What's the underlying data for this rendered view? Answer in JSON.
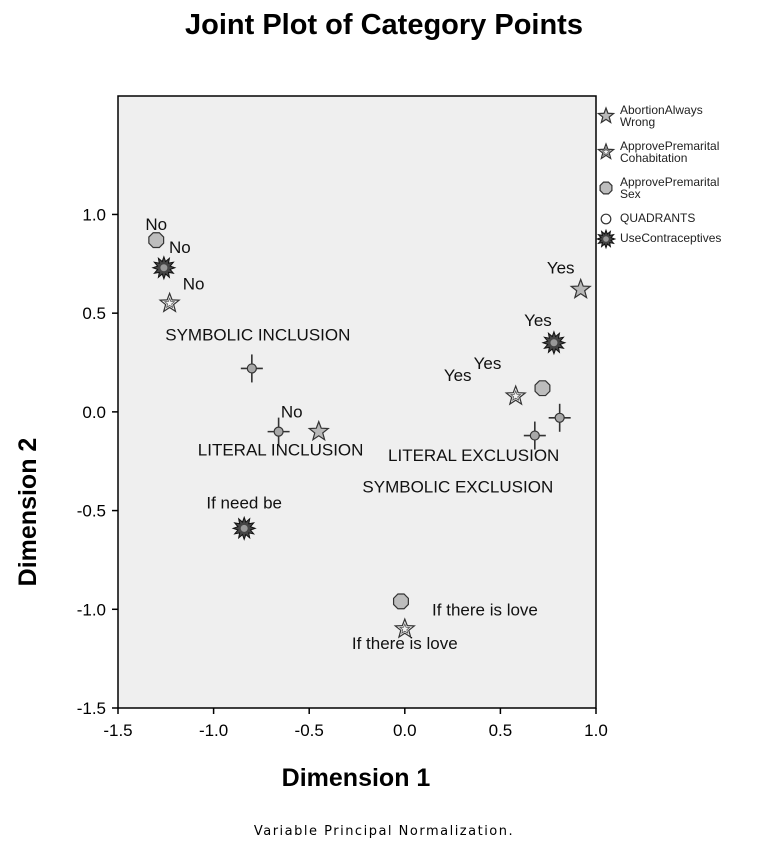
{
  "chart_data": {
    "type": "scatter",
    "title": "Joint Plot of Category Points",
    "xlabel": "Dimension 1",
    "ylabel": "Dimension 2",
    "xlim": [
      -1.5,
      1.0
    ],
    "ylim": [
      -1.5,
      1.6
    ],
    "xticks": [
      -1.5,
      -1.0,
      -0.5,
      0.0,
      0.5,
      1.0
    ],
    "xtick_labels": [
      "-1.5",
      "-1.0",
      "-0.5",
      "0.0",
      "0.5",
      "1.0"
    ],
    "yticks": [
      -1.5,
      -1.0,
      -0.5,
      0.0,
      0.5,
      1.0
    ],
    "ytick_labels": [
      "-1.5",
      "-1.0",
      "-0.5",
      "0.0",
      "0.5",
      "1.0"
    ],
    "footnote": "Variable Principal Normalization.",
    "legend_position": "right",
    "background": "#efefef",
    "series": [
      {
        "name": "AbortionAlwaysWrong",
        "legend_lines": [
          "AbortionAlways",
          "Wrong"
        ],
        "marker": "star-filled",
        "points": [
          {
            "x": -0.45,
            "y": -0.1,
            "label": "No"
          },
          {
            "x": 0.92,
            "y": 0.62,
            "label": "Yes"
          }
        ]
      },
      {
        "name": "ApprovePremaritalCohabitation",
        "legend_lines": [
          "ApprovePremarital",
          "Cohabitation"
        ],
        "marker": "star-open",
        "points": [
          {
            "x": -1.23,
            "y": 0.55,
            "label": "No"
          },
          {
            "x": 0.58,
            "y": 0.08,
            "label": "Yes"
          },
          {
            "x": 0.0,
            "y": -1.1,
            "label": "If there is love"
          }
        ]
      },
      {
        "name": "ApprovePremaritalSex",
        "legend_lines": [
          "ApprovePremarital",
          "Sex"
        ],
        "marker": "octagon",
        "points": [
          {
            "x": -1.3,
            "y": 0.87,
            "label": "No"
          },
          {
            "x": 0.72,
            "y": 0.12,
            "label": "Yes"
          },
          {
            "x": -0.02,
            "y": -0.96,
            "label": "If there is love"
          }
        ]
      },
      {
        "name": "QUADRANTS",
        "legend_lines": [
          "QUADRANTS"
        ],
        "marker": "cross",
        "points": [
          {
            "x": -0.8,
            "y": 0.22,
            "label": "SYMBOLIC INCLUSION"
          },
          {
            "x": -0.66,
            "y": -0.1,
            "label": "LITERAL INCLUSION"
          },
          {
            "x": 0.81,
            "y": -0.03,
            "label": "LITERAL EXCLUSION"
          },
          {
            "x": 0.68,
            "y": -0.12,
            "label": "SYMBOLIC EXCLUSION"
          }
        ]
      },
      {
        "name": "UseContraceptives",
        "legend_lines": [
          "UseContraceptives"
        ],
        "marker": "burst",
        "points": [
          {
            "x": -1.26,
            "y": 0.73,
            "label": "No"
          },
          {
            "x": 0.78,
            "y": 0.35,
            "label": "Yes"
          },
          {
            "x": -0.84,
            "y": -0.59,
            "label": "If need be"
          }
        ]
      }
    ]
  }
}
